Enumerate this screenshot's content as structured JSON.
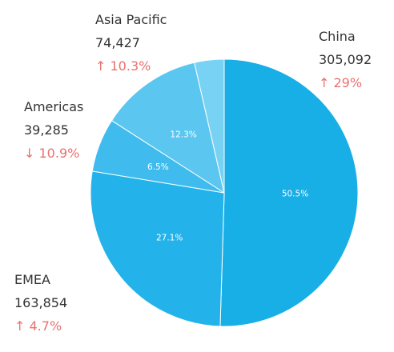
{
  "chart_data": {
    "type": "pie",
    "direction": "clockwise-from-top",
    "slices": [
      {
        "label": "China",
        "value": 305092,
        "percent_label": "50.5%",
        "change": "↑ 29%",
        "color": "#18aee6"
      },
      {
        "label": "EMEA",
        "value": 163854,
        "percent_label": "27.1%",
        "change": "↑ 4.7%",
        "color": "#23b3ea"
      },
      {
        "label": "Americas",
        "value": 39285,
        "percent_label": "6.5%",
        "change": "↓ 10.9%",
        "color": "#3fbced"
      },
      {
        "label": "Asia Pacific",
        "value": 74427,
        "percent_label": "12.3%",
        "change": "↑ 10.3%",
        "color": "#5bc6ef"
      },
      {
        "label": "",
        "value": 21700,
        "percent_label": "",
        "change": "",
        "color": "#78d2f3"
      }
    ],
    "value_labels": {
      "China": "305,092",
      "EMEA": "163,854",
      "Americas": "39,285",
      "Asia Pacific": "74,427"
    }
  },
  "colors": {
    "change_text": "#e8716f",
    "label_text": "#333333",
    "slice_border": "#ffffff"
  }
}
